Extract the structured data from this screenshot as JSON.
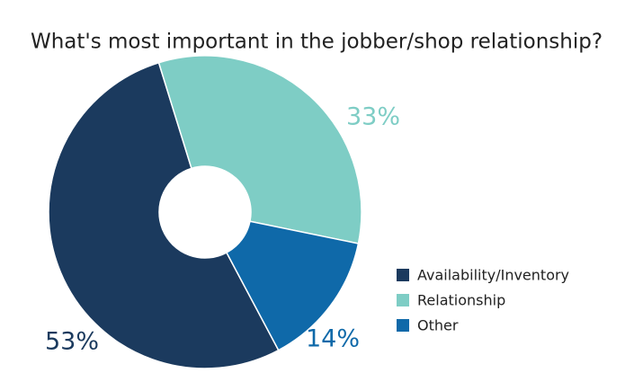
{
  "chart_data": {
    "type": "donut",
    "title": "What's most important in the jobber/shop relationship?",
    "categories": [
      "Availability/Inventory",
      "Relationship",
      "Other"
    ],
    "values": [
      53,
      33,
      14
    ],
    "value_labels": [
      "53%",
      "33%",
      "14%"
    ],
    "colors": [
      "#1b3a5e",
      "#7ecdc5",
      "#0f69a9"
    ],
    "legend": "right"
  }
}
